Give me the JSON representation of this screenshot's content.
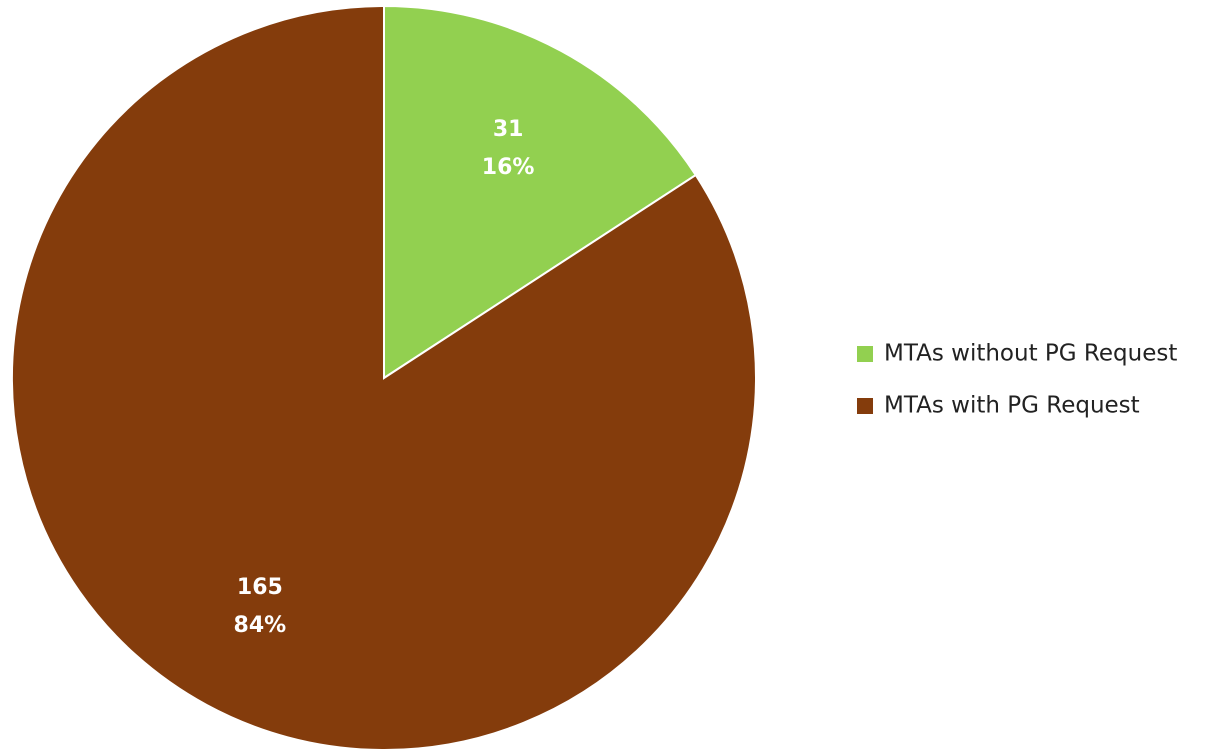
{
  "chart_data": {
    "type": "pie",
    "categories": [
      "MTAs without PG Request",
      "MTAs with PG Request"
    ],
    "values": [
      31,
      165
    ],
    "percent_labels": [
      "16%",
      "84%"
    ],
    "colors": [
      "#92d050",
      "#843c0c"
    ],
    "legend": "right"
  }
}
